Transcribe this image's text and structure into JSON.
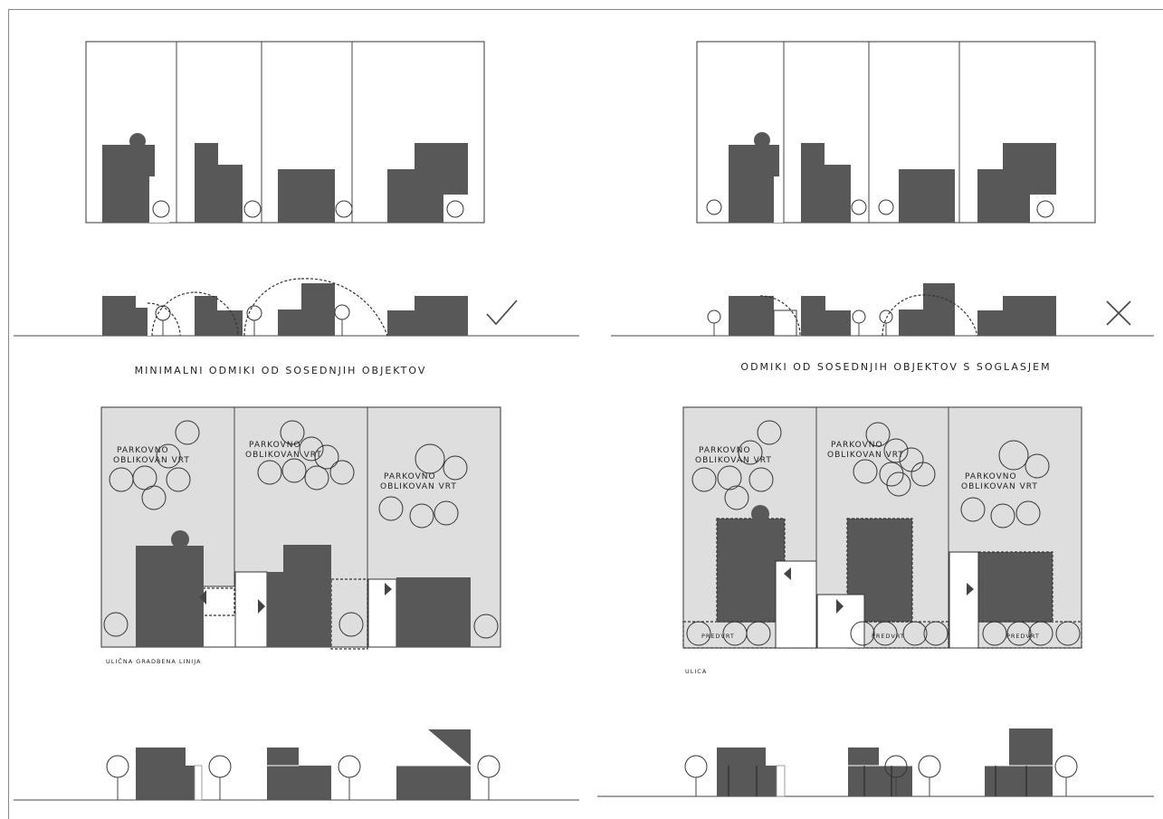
{
  "titles": {
    "left": "MINIMALNI ODMIKI OD SOSEDNJIH OBJEKTOV",
    "right": "ODMIKI OD SOSEDNJIH OBJEKTOV S SOGLASJEM"
  },
  "plot_labels": {
    "garden_line1": "PARKOVNO",
    "garden_line2": "OBLIKOVAN VRT",
    "front_garden": "PREDVRT"
  },
  "street_labels": {
    "left": "ULIČNA GRADBENA LINIJA",
    "right": "ULICA"
  },
  "marks": {
    "allowed": "check-icon",
    "not_allowed": "cross-icon"
  },
  "colors": {
    "building": "#585858",
    "plot": "#dedede",
    "line": "#333333"
  }
}
